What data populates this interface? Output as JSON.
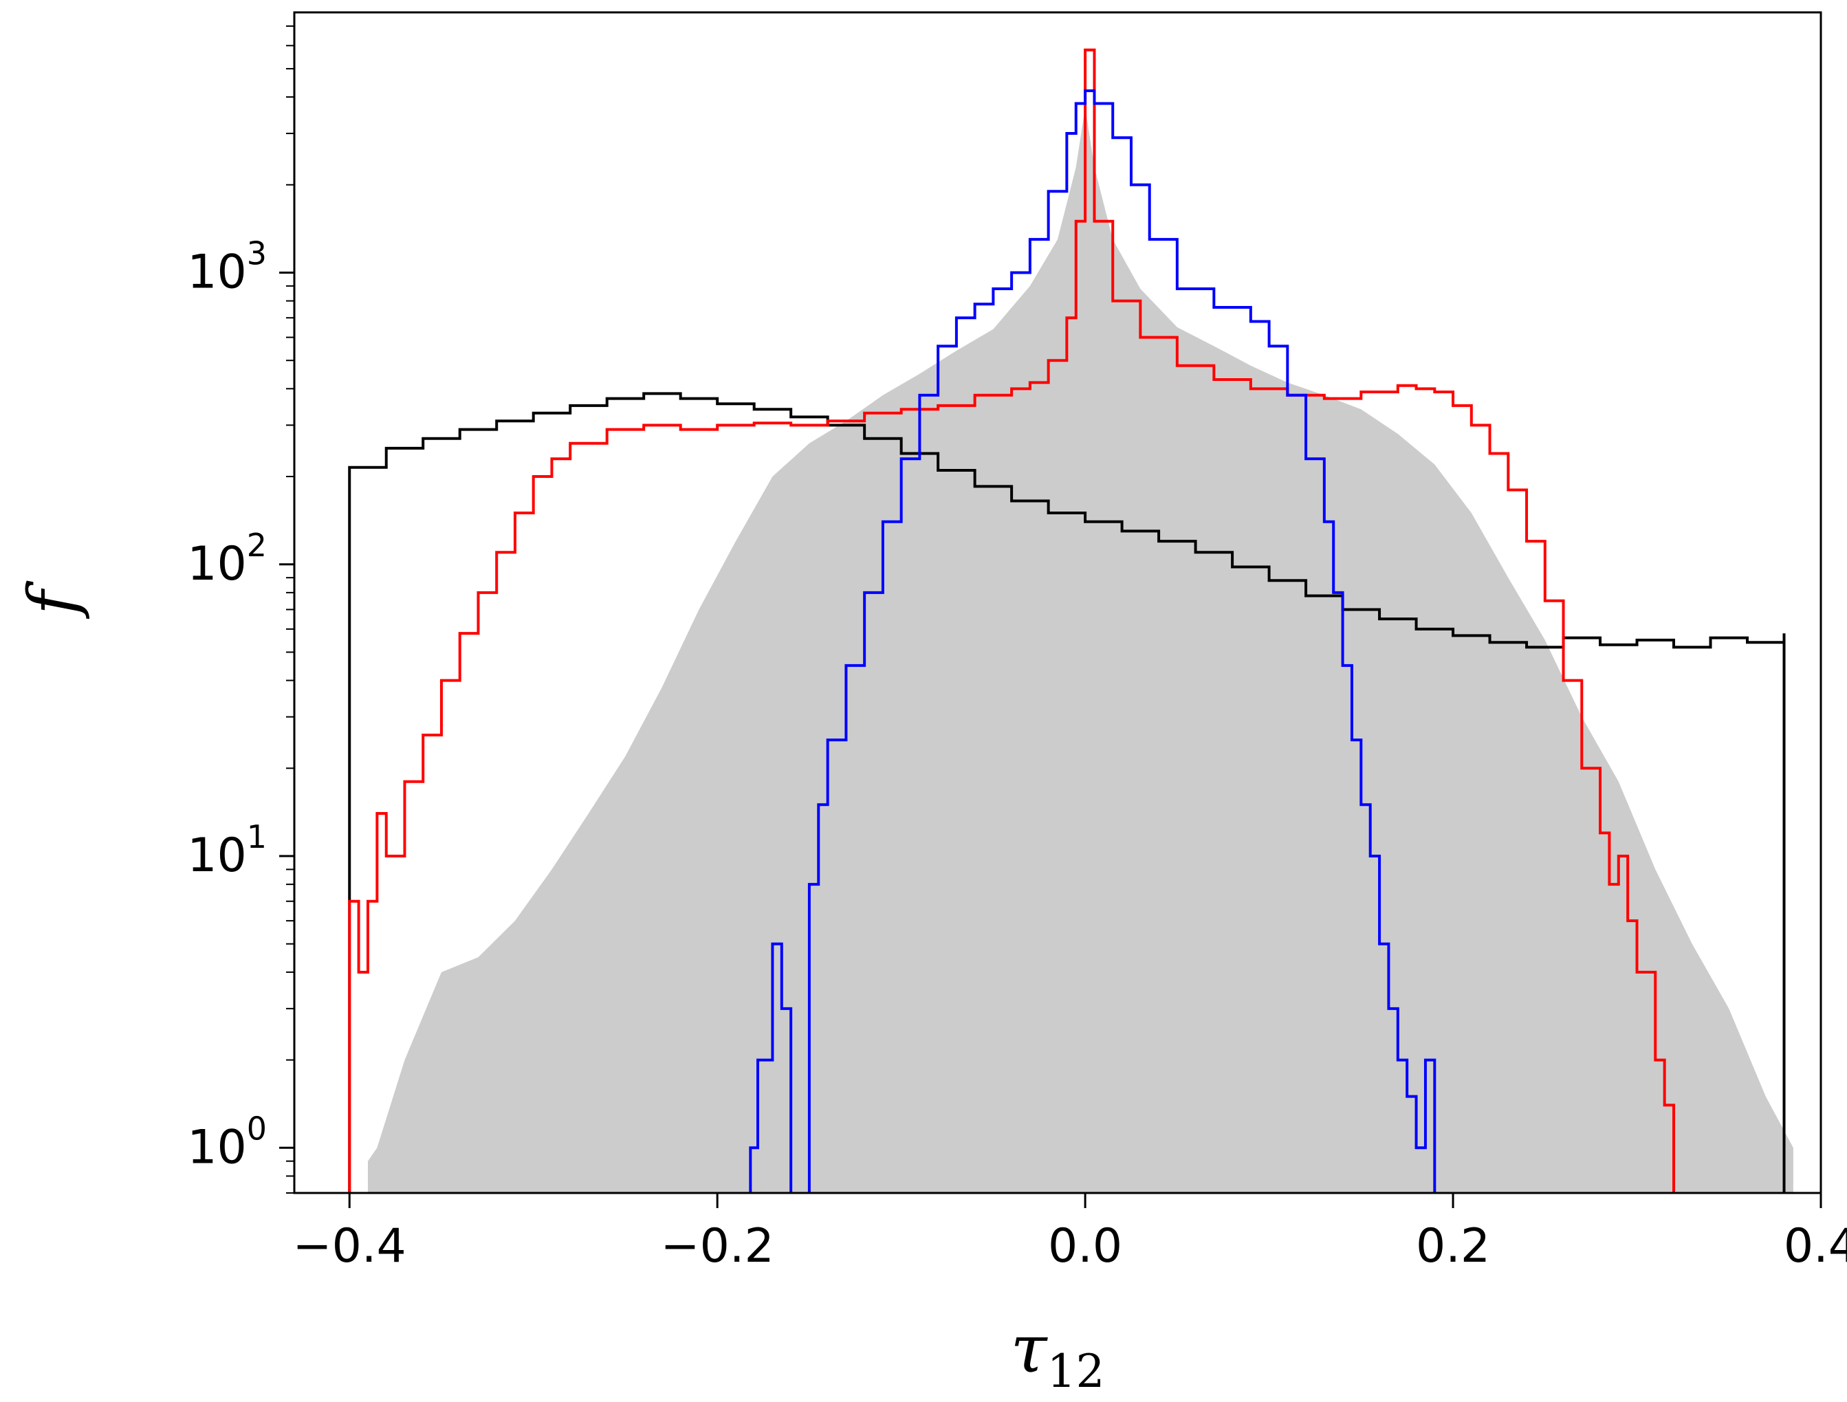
{
  "chart_data": {
    "type": "histogram",
    "xlabel": "τ",
    "xlabel_subscript": "12",
    "ylabel": "f",
    "xlim": [
      -0.43,
      0.4
    ],
    "ylim": [
      0.7,
      7800
    ],
    "yscale": "log",
    "grid": false,
    "legend": "none",
    "xticks": [
      {
        "value": -0.4,
        "label": "−0.4"
      },
      {
        "value": -0.2,
        "label": "−0.2"
      },
      {
        "value": 0.0,
        "label": "0.0"
      },
      {
        "value": 0.2,
        "label": "0.2"
      },
      {
        "value": 0.4,
        "label": "0.4"
      }
    ],
    "yticks": [
      {
        "value": 1,
        "base": "10",
        "exp": "0"
      },
      {
        "value": 10,
        "base": "10",
        "exp": "1"
      },
      {
        "value": 100,
        "base": "10",
        "exp": "2"
      },
      {
        "value": 1000,
        "base": "10",
        "exp": "3"
      }
    ],
    "series": [
      {
        "style": "filled",
        "color": "#cccccc",
        "points": [
          [
            -0.39,
            0.9
          ],
          [
            -0.385,
            1.0
          ],
          [
            -0.37,
            2.0
          ],
          [
            -0.35,
            4.0
          ],
          [
            -0.33,
            4.5
          ],
          [
            -0.31,
            6.0
          ],
          [
            -0.29,
            9.0
          ],
          [
            -0.27,
            14
          ],
          [
            -0.25,
            22
          ],
          [
            -0.23,
            38
          ],
          [
            -0.21,
            70
          ],
          [
            -0.19,
            120
          ],
          [
            -0.17,
            200
          ],
          [
            -0.15,
            260
          ],
          [
            -0.13,
            310
          ],
          [
            -0.11,
            380
          ],
          [
            -0.09,
            450
          ],
          [
            -0.07,
            540
          ],
          [
            -0.05,
            640
          ],
          [
            -0.03,
            900
          ],
          [
            -0.015,
            1300
          ],
          [
            -0.005,
            2300
          ],
          [
            0.0,
            3700
          ],
          [
            0.005,
            2300
          ],
          [
            0.015,
            1300
          ],
          [
            0.03,
            880
          ],
          [
            0.05,
            650
          ],
          [
            0.07,
            560
          ],
          [
            0.09,
            480
          ],
          [
            0.11,
            420
          ],
          [
            0.13,
            380
          ],
          [
            0.15,
            340
          ],
          [
            0.17,
            280
          ],
          [
            0.19,
            220
          ],
          [
            0.21,
            150
          ],
          [
            0.23,
            90
          ],
          [
            0.25,
            55
          ],
          [
            0.27,
            30
          ],
          [
            0.29,
            18
          ],
          [
            0.31,
            9
          ],
          [
            0.33,
            5
          ],
          [
            0.35,
            3
          ],
          [
            0.37,
            1.5
          ],
          [
            0.385,
            1.0
          ]
        ]
      },
      {
        "style": "step",
        "color": "#000000",
        "points": [
          [
            -0.4,
            0.6
          ],
          [
            -0.4,
            215
          ],
          [
            -0.38,
            250
          ],
          [
            -0.36,
            270
          ],
          [
            -0.34,
            290
          ],
          [
            -0.32,
            310
          ],
          [
            -0.3,
            330
          ],
          [
            -0.28,
            350
          ],
          [
            -0.26,
            370
          ],
          [
            -0.24,
            385
          ],
          [
            -0.22,
            370
          ],
          [
            -0.2,
            355
          ],
          [
            -0.18,
            340
          ],
          [
            -0.16,
            320
          ],
          [
            -0.14,
            300
          ],
          [
            -0.12,
            270
          ],
          [
            -0.1,
            240
          ],
          [
            -0.08,
            210
          ],
          [
            -0.06,
            185
          ],
          [
            -0.04,
            165
          ],
          [
            -0.02,
            150
          ],
          [
            0.0,
            140
          ],
          [
            0.02,
            130
          ],
          [
            0.04,
            120
          ],
          [
            0.06,
            110
          ],
          [
            0.08,
            98
          ],
          [
            0.1,
            88
          ],
          [
            0.12,
            78
          ],
          [
            0.14,
            70
          ],
          [
            0.16,
            65
          ],
          [
            0.18,
            60
          ],
          [
            0.2,
            57
          ],
          [
            0.22,
            54
          ],
          [
            0.24,
            52
          ],
          [
            0.26,
            56
          ],
          [
            0.28,
            53
          ],
          [
            0.3,
            55
          ],
          [
            0.32,
            52
          ],
          [
            0.34,
            56
          ],
          [
            0.36,
            54
          ],
          [
            0.38,
            58
          ],
          [
            0.38,
            0.6
          ]
        ]
      },
      {
        "style": "step",
        "color": "#ff0000",
        "points": [
          [
            -0.4,
            0.6
          ],
          [
            -0.4,
            7.0
          ],
          [
            -0.395,
            4.0
          ],
          [
            -0.39,
            7.0
          ],
          [
            -0.385,
            14
          ],
          [
            -0.38,
            10
          ],
          [
            -0.37,
            18
          ],
          [
            -0.36,
            26
          ],
          [
            -0.35,
            40
          ],
          [
            -0.34,
            58
          ],
          [
            -0.33,
            80
          ],
          [
            -0.32,
            110
          ],
          [
            -0.31,
            150
          ],
          [
            -0.3,
            200
          ],
          [
            -0.29,
            230
          ],
          [
            -0.28,
            260
          ],
          [
            -0.26,
            290
          ],
          [
            -0.24,
            300
          ],
          [
            -0.22,
            290
          ],
          [
            -0.2,
            300
          ],
          [
            -0.18,
            305
          ],
          [
            -0.16,
            300
          ],
          [
            -0.14,
            310
          ],
          [
            -0.12,
            330
          ],
          [
            -0.1,
            340
          ],
          [
            -0.08,
            350
          ],
          [
            -0.06,
            380
          ],
          [
            -0.04,
            400
          ],
          [
            -0.03,
            420
          ],
          [
            -0.02,
            500
          ],
          [
            -0.01,
            700
          ],
          [
            -0.005,
            1500
          ],
          [
            0.0,
            5800
          ],
          [
            0.005,
            1500
          ],
          [
            0.015,
            800
          ],
          [
            0.03,
            600
          ],
          [
            0.05,
            480
          ],
          [
            0.07,
            430
          ],
          [
            0.09,
            400
          ],
          [
            0.11,
            380
          ],
          [
            0.13,
            370
          ],
          [
            0.15,
            390
          ],
          [
            0.17,
            410
          ],
          [
            0.18,
            400
          ],
          [
            0.19,
            390
          ],
          [
            0.2,
            350
          ],
          [
            0.21,
            300
          ],
          [
            0.22,
            240
          ],
          [
            0.23,
            180
          ],
          [
            0.24,
            120
          ],
          [
            0.25,
            75
          ],
          [
            0.26,
            40
          ],
          [
            0.27,
            20
          ],
          [
            0.28,
            12
          ],
          [
            0.285,
            8.0
          ],
          [
            0.29,
            10
          ],
          [
            0.295,
            6.0
          ],
          [
            0.3,
            4.0
          ],
          [
            0.31,
            2.0
          ],
          [
            0.315,
            1.4
          ],
          [
            0.32,
            1.0
          ],
          [
            0.32,
            0.6
          ]
        ]
      },
      {
        "style": "step",
        "color": "#0000ff",
        "points": [
          [
            -0.182,
            0.6
          ],
          [
            -0.182,
            1.0
          ],
          [
            -0.178,
            2.0
          ],
          [
            -0.17,
            5.0
          ],
          [
            -0.165,
            3.0
          ],
          [
            -0.16,
            1.0
          ],
          [
            -0.16,
            0.6
          ],
          [
            -0.15,
            8.0
          ],
          [
            -0.145,
            15
          ],
          [
            -0.14,
            25
          ],
          [
            -0.13,
            45
          ],
          [
            -0.12,
            80
          ],
          [
            -0.11,
            140
          ],
          [
            -0.1,
            230
          ],
          [
            -0.09,
            380
          ],
          [
            -0.08,
            560
          ],
          [
            -0.07,
            700
          ],
          [
            -0.06,
            780
          ],
          [
            -0.05,
            880
          ],
          [
            -0.04,
            1000
          ],
          [
            -0.03,
            1300
          ],
          [
            -0.02,
            1900
          ],
          [
            -0.01,
            3000
          ],
          [
            -0.005,
            3800
          ],
          [
            0.0,
            4200
          ],
          [
            0.005,
            3800
          ],
          [
            0.015,
            2900
          ],
          [
            0.025,
            2000
          ],
          [
            0.035,
            1300
          ],
          [
            0.05,
            880
          ],
          [
            0.07,
            760
          ],
          [
            0.09,
            680
          ],
          [
            0.1,
            560
          ],
          [
            0.11,
            380
          ],
          [
            0.12,
            230
          ],
          [
            0.13,
            140
          ],
          [
            0.135,
            80
          ],
          [
            0.14,
            45
          ],
          [
            0.145,
            25
          ],
          [
            0.15,
            15
          ],
          [
            0.155,
            10
          ],
          [
            0.16,
            5.0
          ],
          [
            0.165,
            3.0
          ],
          [
            0.17,
            2.0
          ],
          [
            0.175,
            1.5
          ],
          [
            0.18,
            1.0
          ],
          [
            0.185,
            2.0
          ],
          [
            0.19,
            1.0
          ],
          [
            0.19,
            0.6
          ]
        ]
      }
    ]
  }
}
